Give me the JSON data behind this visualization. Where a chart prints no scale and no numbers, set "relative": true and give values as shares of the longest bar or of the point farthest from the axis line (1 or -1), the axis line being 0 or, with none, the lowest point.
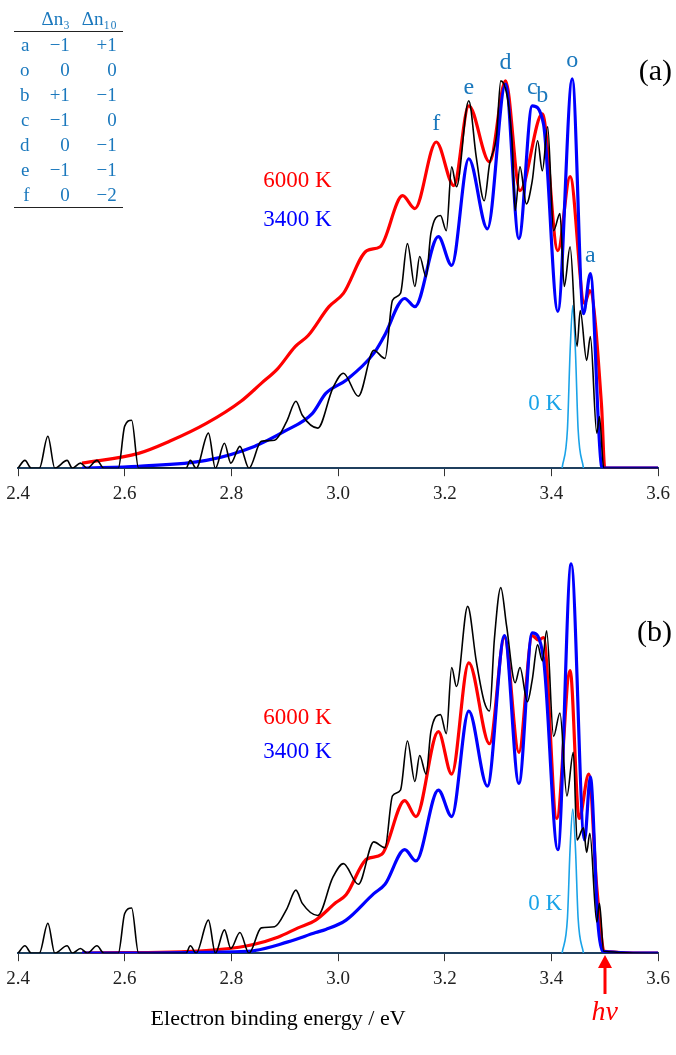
{
  "chart_data": [
    {
      "type": "line",
      "relative": true,
      "marker": "none",
      "xlim": [
        2.4,
        3.6
      ],
      "xticks": [
        2.4,
        2.6,
        2.8,
        {
          "value": 3,
          "label": "3.0"
        },
        3.2,
        3.4,
        3.6
      ],
      "annotations": [
        "(a)",
        "Δn₃ Δn₁₀",
        "a −1 +1",
        "o 0 0",
        "b +1 −1",
        "c −1 0",
        "d 0 −1",
        "e −1 −1",
        "f 0 −2",
        {
          "text": "e",
          "x": 3.245,
          "y": 0.931
        },
        {
          "text": "d",
          "x": 3.314,
          "y": 0.995
        },
        {
          "text": "c",
          "x": 3.364,
          "y": 0.931
        },
        {
          "text": "b",
          "x": 3.383,
          "y": 0.91
        },
        {
          "text": "o",
          "x": 3.439,
          "y": 1
        },
        {
          "text": "a",
          "x": 3.473,
          "y": 0.5
        },
        {
          "text": "f",
          "x": 3.184,
          "y": 0.838
        }
      ],
      "series": [
        {
          "name": "6000 K",
          "color": "#ff0000",
          "x": [
            2.52,
            2.626,
            2.684,
            2.753,
            2.818,
            2.856,
            2.887,
            2.92,
            2.944,
            2.983,
            3.01,
            3.054,
            3.079,
            3.121,
            3.144,
            3.184,
            3.217,
            3.245,
            3.284,
            3.314,
            3.341,
            3.383,
            3.412,
            3.435,
            3.462,
            3.472,
            3.494,
            3.5,
            3.6
          ],
          "values": [
            0.013,
            0.038,
            0.069,
            0.115,
            0.172,
            0.218,
            0.256,
            0.313,
            0.341,
            0.415,
            0.449,
            0.559,
            0.569,
            0.7,
            0.667,
            0.838,
            0.726,
            0.931,
            0.787,
            0.995,
            0.713,
            0.91,
            0.559,
            0.749,
            0.423,
            0.456,
            0.159,
            0,
            0
          ]
        },
        {
          "name": "3400 K",
          "color": "#0000ff",
          "x": [
            2.52,
            2.626,
            2.753,
            2.843,
            2.9,
            2.952,
            2.977,
            3.015,
            3.067,
            3.086,
            3.125,
            3.144,
            3.188,
            3.213,
            3.245,
            3.28,
            3.314,
            3.339,
            3.364,
            3.385,
            3.412,
            3.439,
            3.46,
            3.473,
            3.494,
            3.5,
            3.6
          ],
          "values": [
            0,
            0.005,
            0.02,
            0.056,
            0.095,
            0.141,
            0.192,
            0.226,
            0.295,
            0.338,
            0.436,
            0.415,
            0.595,
            0.521,
            0.795,
            0.615,
            0.987,
            0.59,
            0.931,
            0.885,
            0.403,
            1,
            0.397,
            0.5,
            0.005,
            0,
            0
          ]
        },
        {
          "name": "0 K",
          "color": "#1aa3e8",
          "x": [
            3.42,
            3.43,
            3.435,
            3.44,
            3.445,
            3.45,
            3.46
          ],
          "values": [
            0,
            0.1,
            0.3,
            0.418,
            0.3,
            0.1,
            0
          ]
        },
        {
          "color": "#000000",
          "x": [
            2.4,
            2.413,
            2.425,
            2.44,
            2.456,
            2.469,
            2.492,
            2.502,
            2.517,
            2.53,
            2.548,
            2.561,
            2.588,
            2.6,
            2.613,
            2.626,
            2.715,
            2.723,
            2.734,
            2.757,
            2.77,
            2.787,
            2.799,
            2.816,
            2.833,
            2.856,
            2.881,
            2.904,
            2.921,
            2.933,
            2.962,
            2.99,
            3.01,
            3.038,
            3.067,
            3.088,
            3.102,
            3.117,
            3.13,
            3.144,
            3.153,
            3.165,
            3.174,
            3.192,
            3.203,
            3.213,
            3.222,
            3.245,
            3.259,
            3.274,
            3.284,
            3.297,
            3.305,
            3.326,
            3.332,
            3.341,
            3.353,
            3.364,
            3.374,
            3.383,
            3.393,
            3.404,
            3.416,
            3.424,
            3.435,
            3.448,
            3.454,
            3.466,
            3.473,
            3.485,
            3.49,
            3.498,
            3.6
          ],
          "values": [
            0,
            0.02,
            0,
            0,
            0.082,
            0,
            0.02,
            0,
            0.013,
            0,
            0.02,
            0,
            0,
            0.108,
            0.123,
            0,
            0,
            0.02,
            0,
            0.09,
            0,
            0.064,
            0.013,
            0.056,
            0,
            0.069,
            0.072,
            0.121,
            0.172,
            0.136,
            0.103,
            0.205,
            0.244,
            0.185,
            0.303,
            0.282,
            0.431,
            0.449,
            0.577,
            0.467,
            0.544,
            0.492,
            0.603,
            0.649,
            0.61,
            0.774,
            0.723,
            0.944,
            0.8,
            0.687,
            0.782,
            0.854,
            0.995,
            0.841,
            0.662,
            0.774,
            0.679,
            0.738,
            0.841,
            0.764,
            0.877,
            0.61,
            0.654,
            0.467,
            0.569,
            0.313,
            0.405,
            0.277,
            0.338,
            0.09,
            0.133,
            0,
            0
          ]
        }
      ]
    },
    {
      "type": "line",
      "relative": true,
      "marker": "none",
      "xlim": [
        2.4,
        3.6
      ],
      "xticks": [
        2.4,
        2.6,
        2.8,
        {
          "value": 3,
          "label": "3.0"
        },
        3.2,
        3.4,
        3.6
      ],
      "xlabel": "Electron binding energy / eV",
      "annotations": [
        "(b)",
        {
          "text": "hν",
          "x": 3.5,
          "y": 0
        }
      ],
      "series": [
        {
          "name": "6000 K",
          "color": "#ff0000",
          "x": [
            2.52,
            2.753,
            2.83,
            2.887,
            2.925,
            2.958,
            2.996,
            3.015,
            3.054,
            3.082,
            3.125,
            3.146,
            3.188,
            3.213,
            3.245,
            3.284,
            3.312,
            3.339,
            3.364,
            3.376,
            3.385,
            3.41,
            3.435,
            3.452,
            3.47,
            3.485,
            3.5,
            3.6
          ],
          "values": [
            0,
            0.007,
            0.019,
            0.041,
            0.065,
            0.085,
            0.13,
            0.15,
            0.242,
            0.254,
            0.392,
            0.351,
            0.569,
            0.46,
            0.746,
            0.538,
            0.811,
            0.516,
            0.816,
            0.804,
            0.811,
            0.346,
            0.726,
            0.346,
            0.46,
            0.169,
            0.005,
            0
          ]
        },
        {
          "name": "3400 K",
          "color": "#0000ff",
          "x": [
            2.52,
            2.83,
            2.906,
            2.958,
            2.977,
            3.015,
            3.067,
            3.088,
            3.125,
            3.146,
            3.188,
            3.213,
            3.245,
            3.28,
            3.312,
            3.339,
            3.364,
            3.385,
            3.412,
            3.437,
            3.462,
            3.473,
            3.487,
            3.496,
            3.6
          ],
          "values": [
            0,
            0.005,
            0.029,
            0.053,
            0.061,
            0.085,
            0.153,
            0.177,
            0.266,
            0.237,
            0.419,
            0.351,
            0.622,
            0.429,
            0.816,
            0.436,
            0.823,
            0.758,
            0.266,
            1,
            0.291,
            0.453,
            0.08,
            0.005,
            0
          ]
        },
        {
          "name": "0 K",
          "color": "#1aa3e8",
          "x": [
            3.42,
            3.43,
            3.435,
            3.44,
            3.445,
            3.45,
            3.46
          ],
          "values": [
            0,
            0.09,
            0.27,
            0.37,
            0.27,
            0.09,
            0
          ]
        },
        {
          "color": "#000000",
          "x": [
            2.4,
            2.413,
            2.425,
            2.44,
            2.456,
            2.469,
            2.492,
            2.502,
            2.517,
            2.53,
            2.548,
            2.561,
            2.588,
            2.6,
            2.613,
            2.626,
            2.715,
            2.723,
            2.734,
            2.757,
            2.77,
            2.787,
            2.799,
            2.816,
            2.833,
            2.856,
            2.881,
            2.904,
            2.921,
            2.933,
            2.962,
            2.99,
            3.01,
            3.038,
            3.067,
            3.088,
            3.102,
            3.117,
            3.13,
            3.144,
            3.153,
            3.165,
            3.174,
            3.192,
            3.203,
            3.213,
            3.222,
            3.243,
            3.259,
            3.274,
            3.284,
            3.293,
            3.305,
            3.316,
            3.332,
            3.341,
            3.355,
            3.364,
            3.374,
            3.383,
            3.391,
            3.404,
            3.416,
            3.429,
            3.441,
            3.448,
            3.46,
            3.466,
            3.472,
            3.485,
            3.49,
            3.498,
            3.6
          ],
          "values": [
            0,
            0.019,
            0,
            0,
            0.077,
            0,
            0.019,
            0,
            0.012,
            0,
            0.019,
            0,
            0,
            0.102,
            0.116,
            0,
            0,
            0.019,
            0,
            0.085,
            0,
            0.06,
            0.012,
            0.053,
            0,
            0.065,
            0.068,
            0.114,
            0.162,
            0.128,
            0.097,
            0.194,
            0.23,
            0.177,
            0.286,
            0.271,
            0.404,
            0.419,
            0.545,
            0.441,
            0.508,
            0.46,
            0.569,
            0.613,
            0.564,
            0.734,
            0.685,
            0.891,
            0.751,
            0.646,
            0.622,
            0.806,
            0.939,
            0.84,
            0.695,
            0.734,
            0.646,
            0.702,
            0.792,
            0.751,
            0.828,
            0.557,
            0.617,
            0.404,
            0.516,
            0.291,
            0.322,
            0.259,
            0.308,
            0.08,
            0.128,
            0.005,
            0
          ]
        }
      ]
    }
  ]
}
